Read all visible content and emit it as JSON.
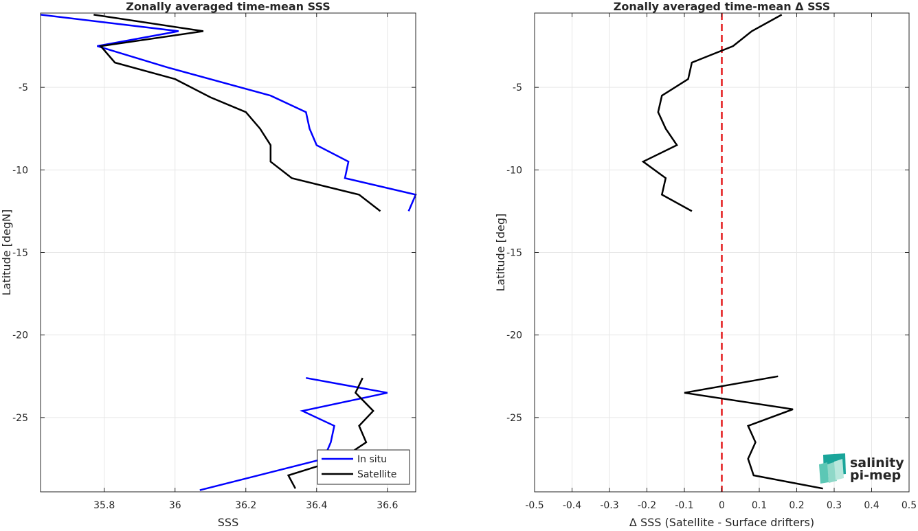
{
  "chart_data": [
    {
      "type": "line",
      "title": "Zonally averaged time-mean SSS",
      "xlabel": "SSS",
      "ylabel": "Latitude [degN]",
      "xlim": [
        35.62,
        36.68
      ],
      "ylim": [
        -29.5,
        -0.5
      ],
      "xticks": [
        35.8,
        36.0,
        36.2,
        36.4,
        36.6
      ],
      "xtick_labels": [
        "35.8",
        "36",
        "36.2",
        "36.4",
        "36.6"
      ],
      "yticks": [
        -5,
        -10,
        -15,
        -20,
        -25
      ],
      "ytick_labels": [
        "-5",
        "-10",
        "-15",
        "-20",
        "-25"
      ],
      "grid": true,
      "legend": "bottom-right",
      "series": [
        {
          "name": "In situ",
          "color": "#0000ff",
          "segments": [
            [
              [
                35.62,
                -0.6
              ],
              [
                36.01,
                -1.6
              ],
              [
                35.78,
                -2.5
              ],
              [
                35.98,
                -3.8
              ],
              [
                36.27,
                -5.5
              ],
              [
                36.37,
                -6.5
              ],
              [
                36.38,
                -7.5
              ],
              [
                36.4,
                -8.5
              ],
              [
                36.49,
                -9.5
              ],
              [
                36.48,
                -10.5
              ],
              [
                36.68,
                -11.5
              ],
              [
                36.66,
                -12.5
              ]
            ],
            [
              [
                36.37,
                -22.6
              ],
              [
                36.6,
                -23.5
              ],
              [
                36.36,
                -24.6
              ],
              [
                36.45,
                -25.5
              ],
              [
                36.44,
                -26.5
              ],
              [
                36.42,
                -27.5
              ],
              [
                36.07,
                -29.4
              ]
            ]
          ]
        },
        {
          "name": "Satellite",
          "color": "#000000",
          "segments": [
            [
              [
                35.77,
                -0.6
              ],
              [
                36.08,
                -1.6
              ],
              [
                35.79,
                -2.5
              ],
              [
                35.83,
                -3.5
              ],
              [
                36.0,
                -4.5
              ],
              [
                36.1,
                -5.6
              ],
              [
                36.2,
                -6.5
              ],
              [
                36.24,
                -7.5
              ],
              [
                36.27,
                -8.5
              ],
              [
                36.27,
                -9.5
              ],
              [
                36.33,
                -10.5
              ],
              [
                36.52,
                -11.5
              ],
              [
                36.58,
                -12.5
              ]
            ],
            [
              [
                36.53,
                -22.6
              ],
              [
                36.51,
                -23.5
              ],
              [
                36.56,
                -24.6
              ],
              [
                36.52,
                -25.5
              ],
              [
                36.54,
                -26.5
              ],
              [
                36.47,
                -27.5
              ],
              [
                36.32,
                -28.5
              ],
              [
                36.34,
                -29.3
              ]
            ]
          ]
        }
      ]
    },
    {
      "type": "line",
      "title": "Zonally averaged time-mean Δ SSS",
      "xlabel": "Δ SSS (Satellite - Surface drifters)",
      "ylabel": "Latitude [deg]",
      "xlim": [
        -0.5,
        0.5
      ],
      "ylim": [
        -29.5,
        -0.5
      ],
      "xticks": [
        -0.5,
        -0.4,
        -0.3,
        -0.2,
        -0.1,
        0,
        0.1,
        0.2,
        0.3,
        0.4,
        0.5
      ],
      "xtick_labels": [
        "-0.5",
        "-0.4",
        "-0.3",
        "-0.2",
        "-0.1",
        "0",
        "0.1",
        "0.2",
        "0.3",
        "0.4",
        "0.5"
      ],
      "yticks": [
        -5,
        -10,
        -15,
        -20,
        -25
      ],
      "ytick_labels": [
        "-5",
        "-10",
        "-15",
        "-20",
        "-25"
      ],
      "grid": true,
      "reference_line": {
        "x": 0,
        "color": "#e41a1c",
        "style": "dashed"
      },
      "series": [
        {
          "color": "#000000",
          "segments": [
            [
              [
                0.16,
                -0.6
              ],
              [
                0.08,
                -1.6
              ],
              [
                0.03,
                -2.5
              ],
              [
                -0.08,
                -3.5
              ],
              [
                -0.09,
                -4.5
              ],
              [
                -0.16,
                -5.5
              ],
              [
                -0.17,
                -6.5
              ],
              [
                -0.15,
                -7.5
              ],
              [
                -0.12,
                -8.5
              ],
              [
                -0.21,
                -9.5
              ],
              [
                -0.15,
                -10.5
              ],
              [
                -0.16,
                -11.5
              ],
              [
                -0.08,
                -12.5
              ]
            ],
            [
              [
                0.15,
                -22.5
              ],
              [
                -0.1,
                -23.5
              ],
              [
                0.19,
                -24.5
              ],
              [
                0.07,
                -25.5
              ],
              [
                0.09,
                -26.5
              ],
              [
                0.07,
                -27.5
              ],
              [
                0.085,
                -28.5
              ],
              [
                0.27,
                -29.3
              ]
            ]
          ]
        }
      ]
    }
  ],
  "logo": {
    "line1": "salinity",
    "line2": "pi-mep",
    "color": "#1aa59a"
  }
}
